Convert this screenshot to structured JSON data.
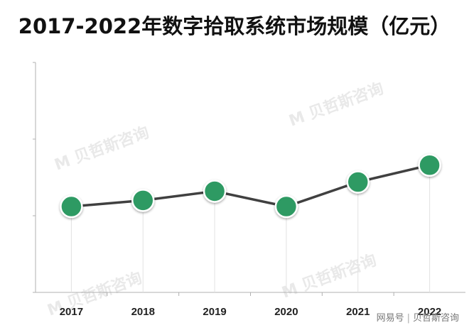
{
  "title": "2017-2022年数字拾取系统市场规模（亿元）",
  "watermark": "贝哲斯咨询",
  "footer": {
    "platform": "网易号",
    "separator": "|",
    "source": "贝哲斯咨询"
  },
  "colors": {
    "line": "#404040",
    "marker": "#2e9a63",
    "marker_edge": "#ffffff",
    "axis": "#b0b0b0",
    "grid": "#e2e2e2"
  },
  "chart_data": {
    "type": "line",
    "categories": [
      "2017",
      "2018",
      "2019",
      "2020",
      "2021",
      "2022"
    ],
    "values": [
      56,
      60,
      66,
      56,
      72,
      83
    ],
    "ylim": [
      0,
      150
    ],
    "y_ticks": [
      0,
      50,
      100,
      150
    ],
    "grid": "vertical drop lines",
    "legend": "none",
    "title": "2017-2022年数字拾取系统市场规模（亿元）",
    "xlabel": "",
    "ylabel": ""
  }
}
